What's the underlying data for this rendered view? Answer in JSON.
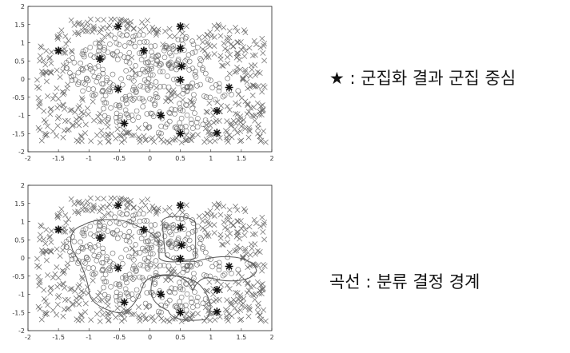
{
  "captions": {
    "top": "★ : 군집화 결과 군집 중심",
    "bottom": "곡선 : 분류 결정 경계"
  },
  "colors": {
    "marker": "#6b6b6b",
    "center": "#111111",
    "boundary": "#555555",
    "frame": "#222222"
  },
  "chart_data": [
    {
      "type": "scatter",
      "xlim": [
        -2,
        2
      ],
      "ylim": [
        -2,
        2
      ],
      "xticks": [
        "-2",
        "-1.5",
        "-1",
        "-0.5",
        "0",
        "0.5",
        "1",
        "1.5",
        "2"
      ],
      "yticks": [
        "2",
        "1.5",
        "1",
        "0.5",
        "0",
        "-0.5",
        "-1",
        "-1.5",
        "-2"
      ],
      "series": [
        {
          "marker": "x",
          "description_points": "cross class, background region"
        },
        {
          "marker": "o",
          "description_points": "circle class, interior regions"
        }
      ],
      "centers": [
        {
          "x": -1.5,
          "y": 0.78
        },
        {
          "x": -0.82,
          "y": 0.55
        },
        {
          "x": -0.52,
          "y": 1.45
        },
        {
          "x": -0.1,
          "y": 0.78
        },
        {
          "x": 0.5,
          "y": 1.45
        },
        {
          "x": 0.5,
          "y": 0.85
        },
        {
          "x": 0.52,
          "y": 0.35
        },
        {
          "x": 0.5,
          "y": -0.02
        },
        {
          "x": -0.52,
          "y": -0.28
        },
        {
          "x": 1.3,
          "y": -0.23
        },
        {
          "x": 0.18,
          "y": -1.0
        },
        {
          "x": -0.42,
          "y": -1.22
        },
        {
          "x": 1.1,
          "y": -0.88
        },
        {
          "x": 0.5,
          "y": -1.5
        },
        {
          "x": 1.1,
          "y": -1.48
        }
      ],
      "boundary": false
    },
    {
      "type": "scatter",
      "xlim": [
        -2,
        2
      ],
      "ylim": [
        -2,
        2
      ],
      "xticks": [
        "-2",
        "-1.5",
        "-1",
        "-0.5",
        "0",
        "0.5",
        "1",
        "1.5",
        "2"
      ],
      "yticks": [
        "2",
        "1.5",
        "1",
        "0.5",
        "0",
        "-0.5",
        "-1",
        "-1.5",
        "-2"
      ],
      "series": [
        {
          "marker": "x",
          "description_points": "cross class, background region"
        },
        {
          "marker": "o",
          "description_points": "circle class, interior regions"
        }
      ],
      "centers": [
        {
          "x": -1.5,
          "y": 0.78
        },
        {
          "x": -0.82,
          "y": 0.55
        },
        {
          "x": -0.52,
          "y": 1.45
        },
        {
          "x": -0.1,
          "y": 0.78
        },
        {
          "x": 0.5,
          "y": 1.45
        },
        {
          "x": 0.5,
          "y": 0.85
        },
        {
          "x": 0.52,
          "y": 0.35
        },
        {
          "x": 0.5,
          "y": -0.02
        },
        {
          "x": -0.52,
          "y": -0.28
        },
        {
          "x": 1.3,
          "y": -0.23
        },
        {
          "x": 0.18,
          "y": -1.0
        },
        {
          "x": -0.42,
          "y": -1.22
        },
        {
          "x": 1.1,
          "y": -0.88
        },
        {
          "x": 0.5,
          "y": -1.5
        },
        {
          "x": 1.1,
          "y": -1.48
        }
      ],
      "boundary": true
    }
  ]
}
